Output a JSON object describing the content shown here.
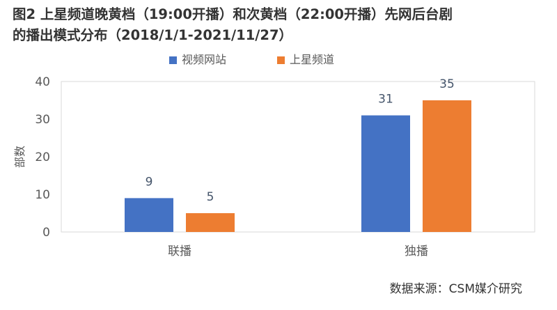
{
  "title": {
    "line1": "图2 上星频道晚黄档（19:00开播）和次黄档（22:00开播）先网后台剧",
    "line2": "的播出模式分布（2018/1/1-2021/11/27）"
  },
  "source": "数据来源：CSM媒介研究",
  "colors": {
    "series_1": "#4472c4",
    "series_2": "#ed7d31",
    "axis_text": "#595959",
    "gridline": "#d9d9d9",
    "plot_border": "#d9d9d9"
  },
  "chart_data": {
    "type": "bar",
    "categories": [
      "联播",
      "独播"
    ],
    "series": [
      {
        "name": "视频网站",
        "values": [
          9,
          31
        ]
      },
      {
        "name": "上星频道",
        "values": [
          5,
          35
        ]
      }
    ],
    "xlabel": "",
    "ylabel": "部数",
    "ylim": [
      0,
      40
    ],
    "yticks": [
      0,
      10,
      20,
      30,
      40
    ],
    "legend": "top-center",
    "grid": false,
    "data_labels": true
  }
}
